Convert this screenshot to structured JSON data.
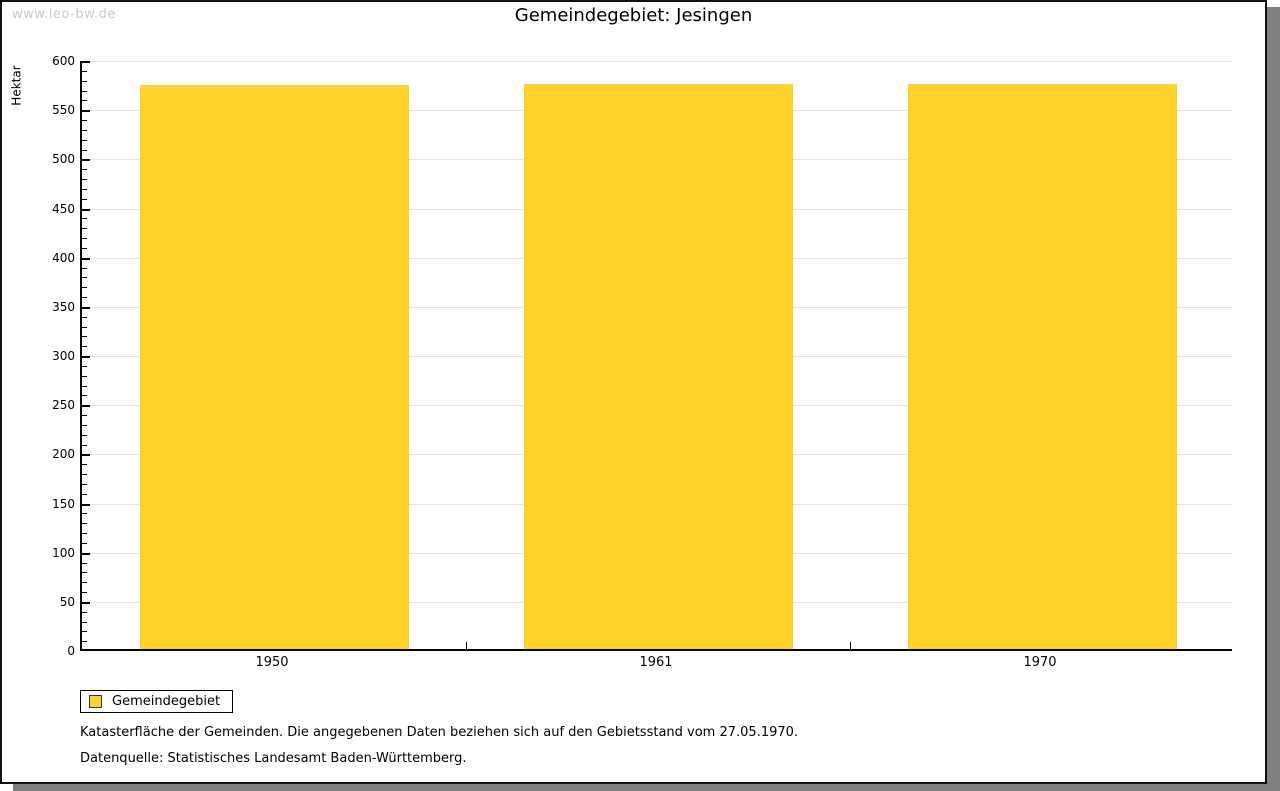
{
  "watermark": "www.leo-bw.de",
  "title": "Gemeindegebiet: Jesingen",
  "chart_data": {
    "type": "bar",
    "title": "Gemeindegebiet: Jesingen",
    "categories": [
      "1950",
      "1961",
      "1970"
    ],
    "series": [
      {
        "name": "Gemeindegebiet",
        "values": [
          574,
          575,
          575
        ]
      }
    ],
    "xlabel": "",
    "ylabel": "Hektar",
    "ylim": [
      0,
      600
    ],
    "ytick_major": 50,
    "ytick_minor": 10,
    "grid": true,
    "legend_position": "bottom-left",
    "bar_color": "#FDD32B",
    "bar_width_fraction": 0.7
  },
  "legend": {
    "label": "Gemeindegebiet",
    "swatch_color": "#FDD32B"
  },
  "footnotes": {
    "line1": "Katasterfläche der Gemeinden. Die angegebenen Daten beziehen sich auf den Gebietsstand vom 27.05.1970.",
    "line2": "Datenquelle: Statistisches Landesamt Baden-Württemberg."
  },
  "colors": {
    "bar": "#FDD32B",
    "gridline": "#E4E4E4",
    "axis": "#000000",
    "frame_shadow": "#808080",
    "watermark": "#C9C9C9",
    "background": "#FFFFFF"
  }
}
